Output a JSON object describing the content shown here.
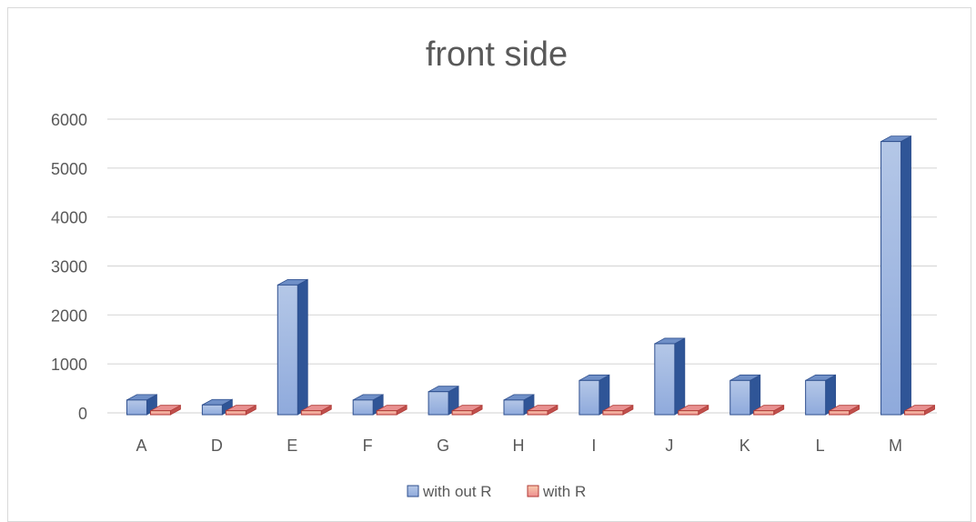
{
  "chart_data": {
    "type": "bar",
    "title": "front side",
    "categories": [
      "A",
      "D",
      "E",
      "F",
      "G",
      "H",
      "I",
      "J",
      "K",
      "L",
      "M"
    ],
    "series": [
      {
        "name": "with out R",
        "values": [
          300,
          200,
          2650,
          300,
          470,
          300,
          700,
          1450,
          700,
          700,
          5580
        ],
        "color": "#8FAADC"
      },
      {
        "name": "with R",
        "values": [
          80,
          80,
          80,
          80,
          80,
          80,
          80,
          80,
          80,
          80,
          80
        ],
        "color": "#F4B183"
      }
    ],
    "yticks": [
      "0",
      "1000",
      "2000",
      "3000",
      "4000",
      "5000",
      "6000"
    ],
    "ylim": [
      0,
      6000
    ],
    "grid": true,
    "legend_position": "bottom",
    "style": "3d-clustered-column"
  }
}
